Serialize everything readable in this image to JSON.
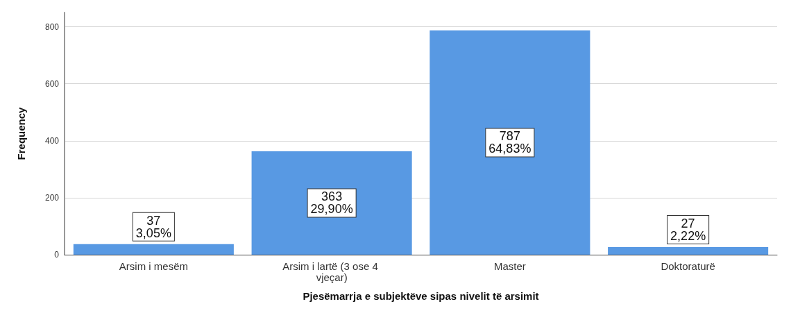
{
  "chart_data": {
    "type": "bar",
    "xlabel": "Pjesëmarrja e subjektëve sipas nivelit të arsimit",
    "ylabel": "Frequency",
    "categories": [
      "Arsim i mesëm",
      "Arsim i lartë (3 ose 4 vjeçar)",
      "Master",
      "Doktoraturë"
    ],
    "values": [
      37,
      363,
      787,
      27
    ],
    "value_labels": [
      "37\n3,05%",
      "363\n29,90%",
      "787\n64,83%",
      "27\n2,22%"
    ],
    "color": "#5899e3",
    "ylim": [
      0,
      850
    ],
    "yticks": [
      0,
      200,
      400,
      600,
      800
    ],
    "grid": "y"
  }
}
